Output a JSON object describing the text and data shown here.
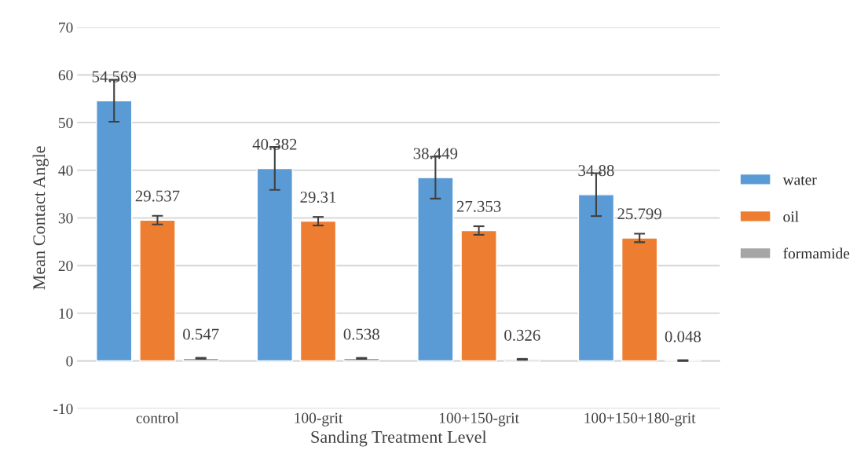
{
  "chart_data": {
    "type": "bar",
    "xlabel": "Sanding Treatment Level",
    "ylabel": "Mean Contact Angle",
    "categories": [
      "control",
      "100-grit",
      "100+150-grit",
      "100+150+180-grit"
    ],
    "series": [
      {
        "name": "water",
        "color": "#5b9bd5",
        "values": [
          54.569,
          40.382,
          38.449,
          34.88
        ],
        "errors": [
          4.4,
          4.5,
          4.4,
          4.5
        ]
      },
      {
        "name": "oil",
        "color": "#ed7d31",
        "values": [
          29.537,
          29.31,
          27.353,
          25.799
        ],
        "errors": [
          0.9,
          0.9,
          0.9,
          0.9
        ]
      },
      {
        "name": "formamide",
        "color": "#a5a5a5",
        "values": [
          0.547,
          0.538,
          0.326,
          0.048
        ],
        "errors": [
          0.1,
          0.1,
          0.1,
          0.1
        ]
      }
    ],
    "ylim": [
      -10,
      70
    ],
    "yticks": [
      -10,
      0,
      10,
      20,
      30,
      40,
      50,
      60,
      70
    ],
    "grid": "y",
    "legend": "right",
    "data_labels": true
  }
}
